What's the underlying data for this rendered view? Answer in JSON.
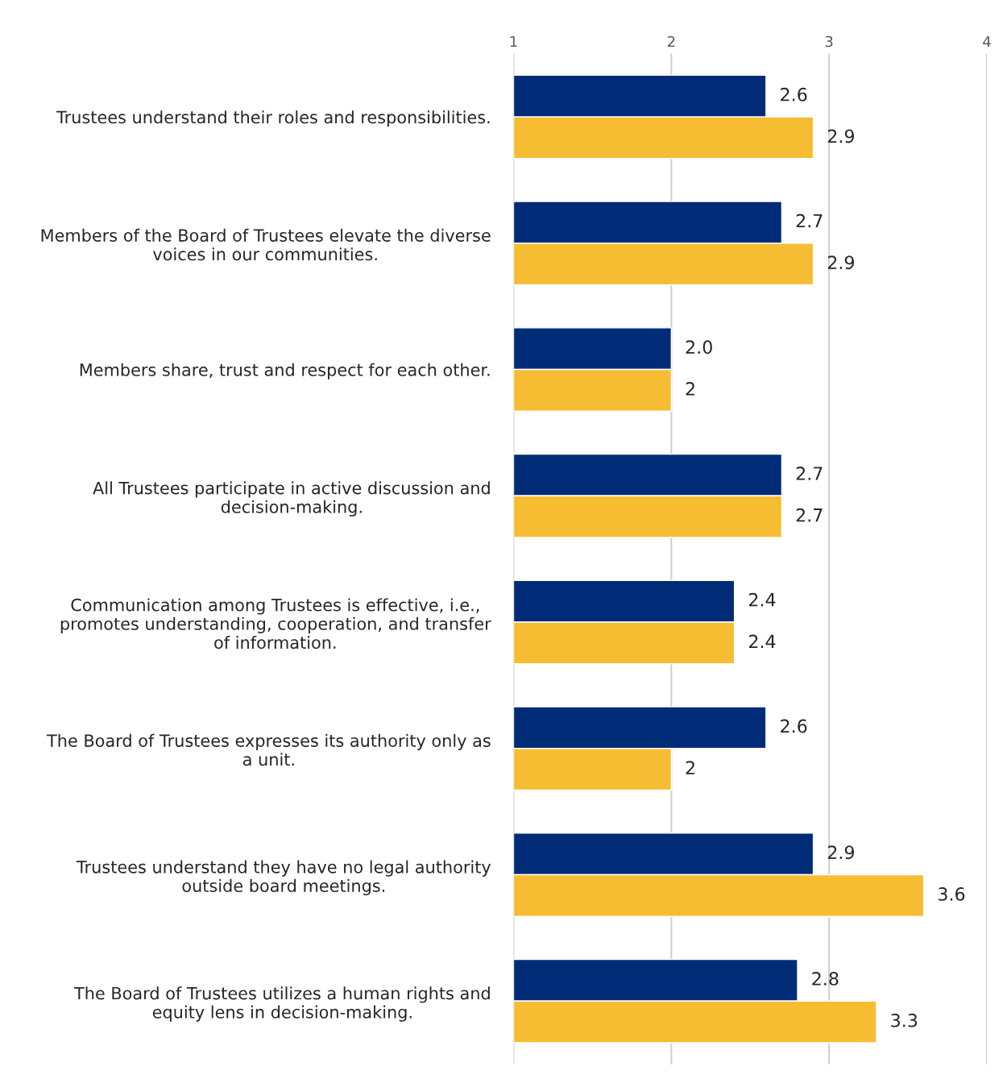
{
  "chart_data": {
    "type": "bar",
    "orientation": "horizontal",
    "categories": [
      "Trustees understand their roles and responsibilities.",
      "Members of the Board of Trustees elevate the diverse voices in our communities.",
      "Members share, trust and respect for each other.",
      "All Trustees participate in active discussion and decision-making.",
      "Communication among Trustees is effective, i.e., promotes understanding, cooperation, and transfer of information.",
      "The Board of Trustees expresses its authority only as a unit.",
      "Trustees understand they have no legal authority outside board meetings.",
      "The Board of Trustees utilizes a human rights and equity lens in decision-making."
    ],
    "series": [
      {
        "color": "#002b77",
        "values": [
          2.6,
          2.7,
          2.0,
          2.7,
          2.4,
          2.6,
          2.9,
          2.8
        ],
        "value_labels": [
          "2.6",
          "2.7",
          "2.0",
          "2.7",
          "2.4",
          "2.6",
          "2.9",
          "2.8"
        ]
      },
      {
        "color": "#f6bd33",
        "values": [
          2.9,
          2.9,
          2,
          2.7,
          2.4,
          2,
          3.6,
          3.3
        ],
        "value_labels": [
          "2.9",
          "2.9",
          "2",
          "2.7",
          "2.4",
          "2",
          "3.6",
          "3.3"
        ]
      }
    ],
    "xlim": [
      1,
      4
    ],
    "xticks": [
      1,
      2,
      3,
      4
    ],
    "grid": "x"
  }
}
